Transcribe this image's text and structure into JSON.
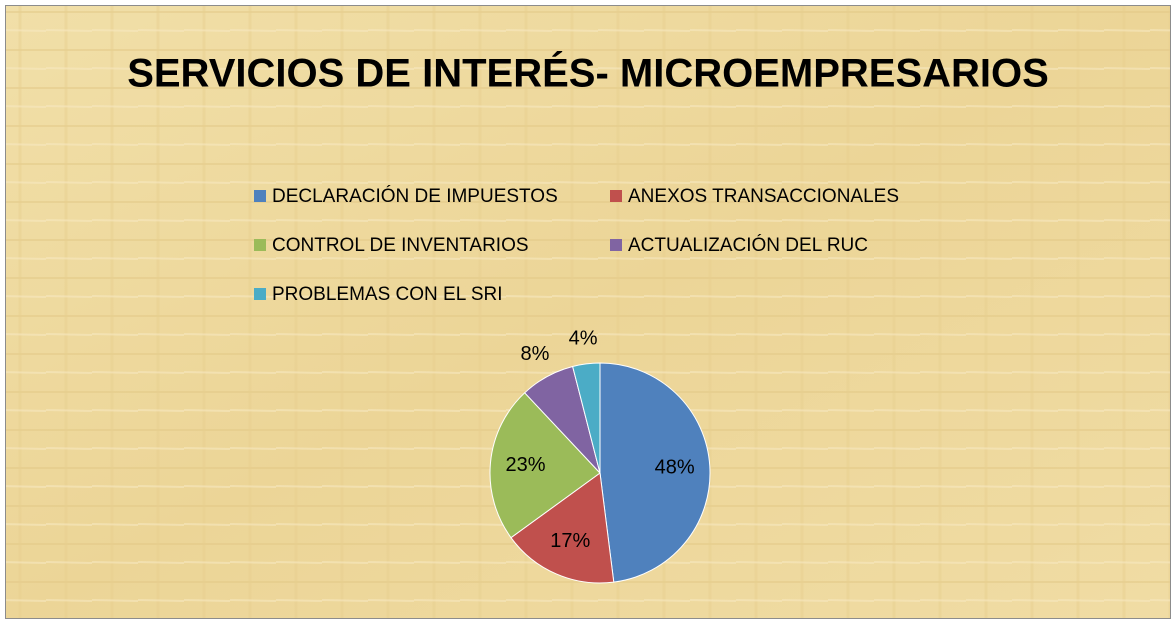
{
  "chart_data": {
    "type": "pie",
    "title": "SERVICIOS DE INTERÉS- MICROEMPRESARIOS",
    "categories": [
      "DECLARACIÓN DE IMPUESTOS",
      "ANEXOS TRANSACCIONALES",
      "CONTROL DE INVENTARIOS",
      "ACTUALIZACIÓN DEL RUC",
      "PROBLEMAS CON EL SRI"
    ],
    "values": [
      48,
      17,
      23,
      8,
      4
    ],
    "value_labels": [
      "48%",
      "17%",
      "23%",
      "8%",
      "4%"
    ],
    "colors": [
      "#4f81bd",
      "#c0504d",
      "#9bbb59",
      "#8064a2",
      "#4bacc6"
    ],
    "legend": "top"
  }
}
